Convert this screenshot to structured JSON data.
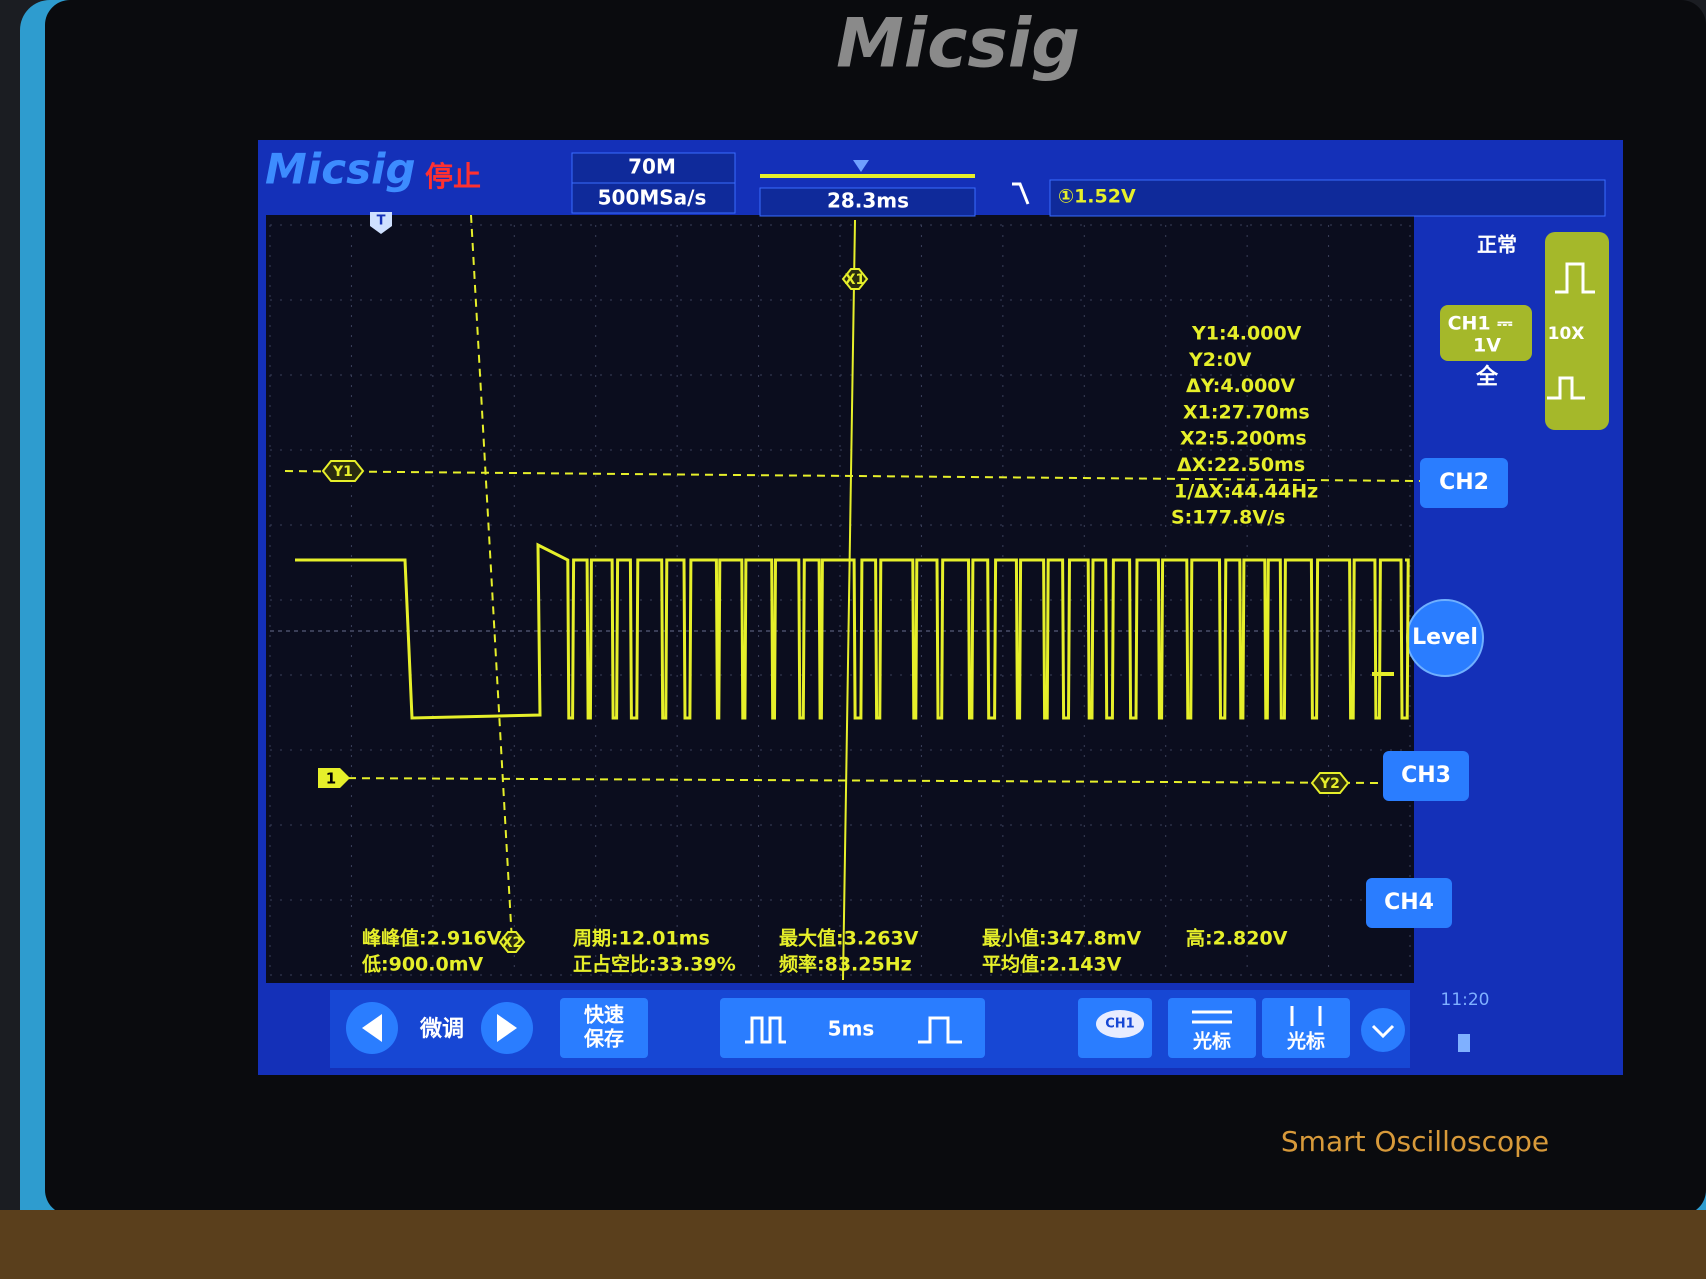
{
  "bezel": {
    "brand": "Micsig",
    "tagline": "Smart Oscilloscope"
  },
  "header": {
    "logo": "Micsig",
    "status": "停止",
    "bandwidth": "70M",
    "sample_rate": "500MSa/s",
    "timebase_position": "28.3ms",
    "trigger_level": "①1.52V"
  },
  "side_panel": {
    "mode": "正常",
    "channel": "CH1 ⎓",
    "scale": "1V",
    "coupling": "全",
    "probe": "10X",
    "buttons": [
      "CH2",
      "Level",
      "CH3",
      "CH4"
    ]
  },
  "markers": {
    "trigger": "T",
    "x1": "X1",
    "y1": "Y1",
    "channel": "1",
    "y2": "Y2",
    "x2": "X2"
  },
  "cursor_readout": [
    "Y1:4.000V",
    "Y2:0V",
    "ΔY:4.000V",
    "X1:27.70ms",
    "X2:5.200ms",
    "ΔX:22.50ms",
    "1/ΔX:44.44Hz",
    "S:177.8V/s"
  ],
  "measurements": [
    [
      "峰峰值:2.916V",
      "低:900.0mV"
    ],
    [
      "周期:12.01ms",
      "正占空比:33.39%"
    ],
    [
      "最大值:3.263V",
      "频率:83.25Hz"
    ],
    [
      "最小值:347.8mV",
      "平均值:2.143V"
    ],
    [
      "高:2.820V"
    ]
  ],
  "toolbar": {
    "fine_tune": "微调",
    "quick_save": [
      "快速",
      "保存"
    ],
    "timebase": "5ms",
    "channel": "CH1",
    "cursor_h": "光标",
    "cursor_v": "光标",
    "clock": "11:20"
  }
}
